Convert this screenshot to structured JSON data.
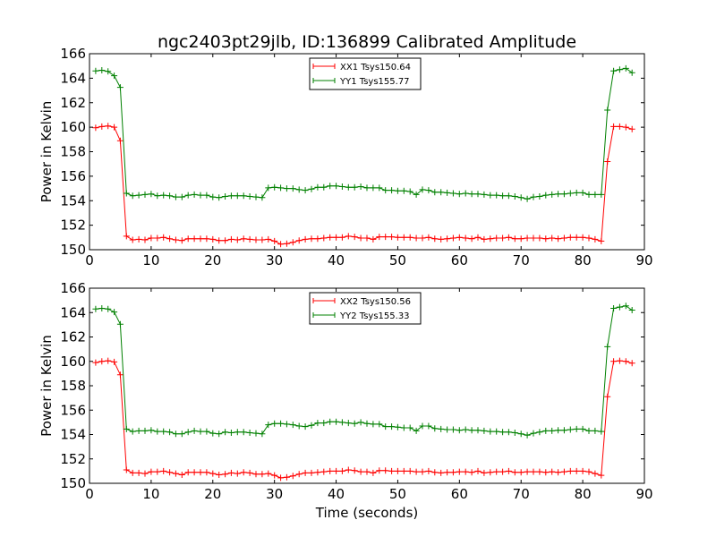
{
  "title": "ngc2403pt29jlb, ID:136899 Calibrated Amplitude",
  "chart_data": [
    {
      "type": "line",
      "ylabel": "Power in Kelvin",
      "xlabel": "",
      "xlim": [
        0,
        90
      ],
      "ylim": [
        150,
        166
      ],
      "xticks": [
        0,
        10,
        20,
        30,
        40,
        50,
        60,
        70,
        80,
        90
      ],
      "yticks": [
        150,
        152,
        154,
        156,
        158,
        160,
        162,
        164,
        166
      ],
      "grid": false,
      "legend": "top-center",
      "x": [
        1,
        2,
        3,
        4,
        5,
        6,
        7,
        8,
        9,
        10,
        11,
        12,
        13,
        14,
        15,
        16,
        17,
        18,
        19,
        20,
        21,
        22,
        23,
        24,
        25,
        26,
        27,
        28,
        29,
        30,
        31,
        32,
        33,
        34,
        35,
        36,
        37,
        38,
        39,
        40,
        41,
        42,
        43,
        44,
        45,
        46,
        47,
        48,
        49,
        50,
        51,
        52,
        53,
        54,
        55,
        56,
        57,
        58,
        59,
        60,
        61,
        62,
        63,
        64,
        65,
        66,
        67,
        68,
        69,
        70,
        71,
        72,
        73,
        74,
        75,
        76,
        77,
        78,
        79,
        80,
        81,
        82,
        83,
        84,
        85,
        86,
        87,
        88,
        89,
        90
      ],
      "series": [
        {
          "name": "XX1 Tsys150.64",
          "color": "#ff0000",
          "values": [
            159.95,
            160.05,
            160.1,
            160.0,
            158.9,
            151.1,
            150.8,
            150.85,
            150.8,
            150.95,
            150.95,
            151.0,
            150.9,
            150.8,
            150.75,
            150.9,
            150.9,
            150.9,
            150.9,
            150.85,
            150.75,
            150.75,
            150.85,
            150.8,
            150.9,
            150.85,
            150.8,
            150.8,
            150.85,
            150.7,
            150.45,
            150.5,
            150.6,
            150.75,
            150.85,
            150.9,
            150.9,
            150.95,
            151.0,
            151.0,
            151.0,
            151.1,
            151.05,
            150.95,
            150.95,
            150.85,
            151.05,
            151.05,
            151.05,
            151.0,
            151.0,
            151.0,
            150.95,
            150.95,
            151.0,
            150.9,
            150.85,
            150.9,
            150.95,
            151.0,
            150.95,
            150.9,
            151.0,
            150.85,
            150.9,
            150.95,
            150.95,
            151.0,
            150.9,
            150.9,
            150.95,
            150.95,
            150.95,
            150.9,
            150.95,
            150.9,
            150.95,
            151.0,
            151.0,
            151.0,
            150.95,
            150.85,
            150.7,
            157.2,
            160.05,
            160.05,
            160.0,
            159.85,
            null,
            null
          ]
        },
        {
          "name": "YY1 Tsys155.77",
          "color": "#008000",
          "values": [
            164.6,
            164.65,
            164.55,
            164.2,
            163.25,
            154.6,
            154.4,
            154.45,
            154.5,
            154.55,
            154.4,
            154.45,
            154.4,
            154.3,
            154.3,
            154.45,
            154.5,
            154.45,
            154.45,
            154.3,
            154.25,
            154.35,
            154.4,
            154.4,
            154.4,
            154.35,
            154.3,
            154.25,
            155.05,
            155.1,
            155.05,
            155.0,
            155.0,
            154.9,
            154.85,
            154.95,
            155.1,
            155.1,
            155.2,
            155.2,
            155.15,
            155.1,
            155.1,
            155.15,
            155.05,
            155.05,
            155.05,
            154.85,
            154.85,
            154.8,
            154.8,
            154.75,
            154.5,
            154.9,
            154.85,
            154.7,
            154.7,
            154.65,
            154.6,
            154.55,
            154.6,
            154.55,
            154.55,
            154.5,
            154.45,
            154.45,
            154.4,
            154.4,
            154.35,
            154.25,
            154.15,
            154.3,
            154.35,
            154.45,
            154.5,
            154.55,
            154.55,
            154.6,
            154.65,
            154.65,
            154.5,
            154.5,
            154.5,
            161.4,
            164.6,
            164.7,
            164.8,
            164.45,
            null,
            null
          ]
        }
      ]
    },
    {
      "type": "line",
      "ylabel": "Power in Kelvin",
      "xlabel": "Time (seconds)",
      "xlim": [
        0,
        90
      ],
      "ylim": [
        150,
        166
      ],
      "xticks": [
        0,
        10,
        20,
        30,
        40,
        50,
        60,
        70,
        80,
        90
      ],
      "yticks": [
        150,
        152,
        154,
        156,
        158,
        160,
        162,
        164,
        166
      ],
      "grid": false,
      "legend": "top-center",
      "x": [
        1,
        2,
        3,
        4,
        5,
        6,
        7,
        8,
        9,
        10,
        11,
        12,
        13,
        14,
        15,
        16,
        17,
        18,
        19,
        20,
        21,
        22,
        23,
        24,
        25,
        26,
        27,
        28,
        29,
        30,
        31,
        32,
        33,
        34,
        35,
        36,
        37,
        38,
        39,
        40,
        41,
        42,
        43,
        44,
        45,
        46,
        47,
        48,
        49,
        50,
        51,
        52,
        53,
        54,
        55,
        56,
        57,
        58,
        59,
        60,
        61,
        62,
        63,
        64,
        65,
        66,
        67,
        68,
        69,
        70,
        71,
        72,
        73,
        74,
        75,
        76,
        77,
        78,
        79,
        80,
        81,
        82,
        83,
        84,
        85,
        86,
        87,
        88,
        89,
        90
      ],
      "series": [
        {
          "name": "XX2 Tsys150.56",
          "color": "#ff0000",
          "values": [
            159.9,
            160.0,
            160.05,
            159.95,
            158.9,
            151.1,
            150.85,
            150.85,
            150.8,
            150.95,
            150.95,
            151.0,
            150.9,
            150.8,
            150.7,
            150.9,
            150.9,
            150.9,
            150.9,
            150.8,
            150.7,
            150.75,
            150.85,
            150.8,
            150.9,
            150.85,
            150.75,
            150.75,
            150.8,
            150.65,
            150.45,
            150.5,
            150.6,
            150.75,
            150.85,
            150.85,
            150.9,
            150.95,
            151.0,
            151.0,
            151.0,
            151.1,
            151.05,
            150.95,
            150.95,
            150.85,
            151.05,
            151.05,
            151.0,
            151.0,
            151.0,
            151.0,
            150.95,
            150.95,
            151.0,
            150.9,
            150.85,
            150.9,
            150.9,
            150.95,
            150.95,
            150.9,
            151.0,
            150.85,
            150.9,
            150.95,
            150.95,
            151.0,
            150.9,
            150.9,
            150.95,
            150.95,
            150.95,
            150.9,
            150.95,
            150.9,
            150.95,
            151.0,
            151.0,
            151.0,
            150.95,
            150.8,
            150.65,
            157.1,
            160.0,
            160.05,
            160.0,
            159.85,
            null,
            null
          ]
        },
        {
          "name": "YY2 Tsys155.33",
          "color": "#008000",
          "values": [
            164.3,
            164.35,
            164.3,
            164.05,
            163.05,
            154.45,
            154.25,
            154.3,
            154.3,
            154.35,
            154.25,
            154.25,
            154.2,
            154.05,
            154.05,
            154.2,
            154.3,
            154.25,
            154.25,
            154.1,
            154.05,
            154.2,
            154.15,
            154.2,
            154.2,
            154.15,
            154.1,
            154.05,
            154.8,
            154.9,
            154.9,
            154.85,
            154.8,
            154.7,
            154.65,
            154.75,
            154.95,
            154.95,
            155.05,
            155.05,
            155.0,
            154.95,
            154.9,
            155.0,
            154.9,
            154.85,
            154.85,
            154.65,
            154.65,
            154.6,
            154.55,
            154.55,
            154.3,
            154.7,
            154.7,
            154.5,
            154.45,
            154.4,
            154.4,
            154.35,
            154.4,
            154.35,
            154.35,
            154.3,
            154.25,
            154.25,
            154.2,
            154.2,
            154.15,
            154.05,
            153.95,
            154.1,
            154.2,
            154.3,
            154.3,
            154.35,
            154.35,
            154.4,
            154.45,
            154.45,
            154.3,
            154.3,
            154.25,
            161.2,
            164.35,
            164.45,
            164.55,
            164.2,
            null,
            null
          ]
        }
      ]
    }
  ]
}
